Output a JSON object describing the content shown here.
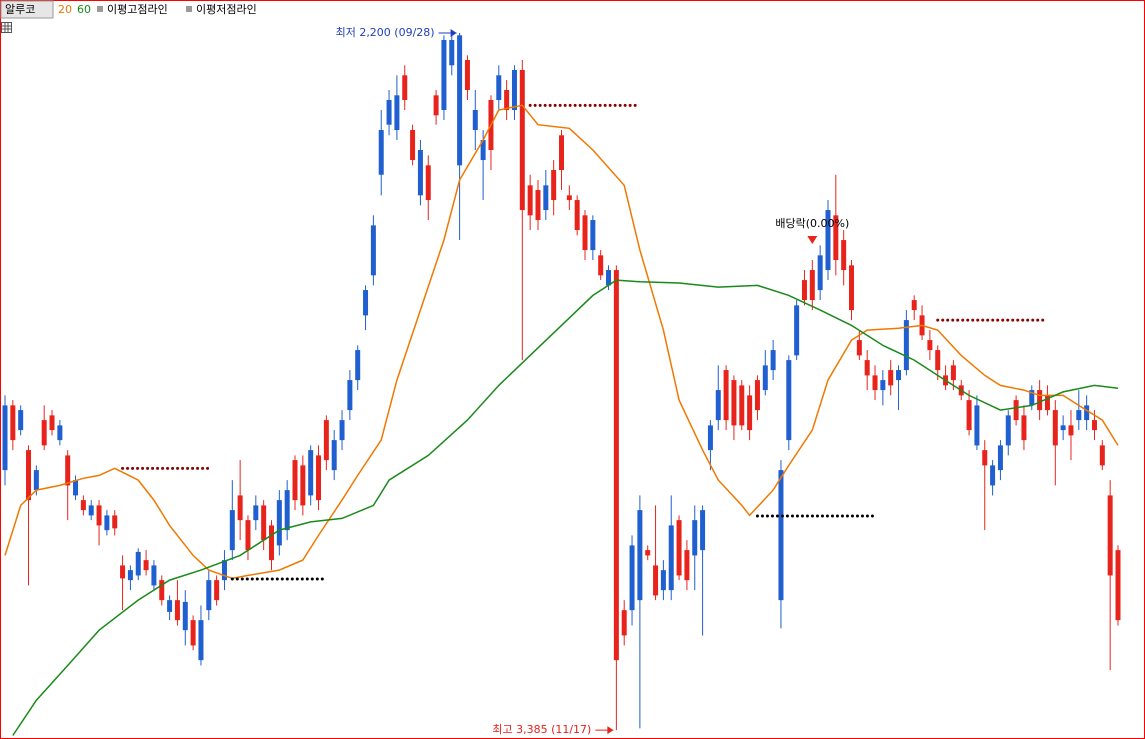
{
  "chart_data": {
    "type": "candlestick",
    "name": "알루코",
    "ylim": [
      2144,
      3400
    ],
    "inverted": true,
    "up_color": "#e8231b",
    "down_color": "#1f5fcf",
    "candles": [
      [
        2943,
        2969,
        2816,
        2833
      ],
      [
        2833,
        2909,
        2824,
        2892
      ],
      [
        2875,
        2884,
        2833,
        2841
      ],
      [
        2909,
        3139,
        2901,
        2994
      ],
      [
        2977,
        2986,
        2935,
        2943
      ],
      [
        2858,
        2909,
        2833,
        2901
      ],
      [
        2850,
        2884,
        2841,
        2875
      ],
      [
        2892,
        2901,
        2858,
        2867
      ],
      [
        2918,
        3028,
        2909,
        2969
      ],
      [
        2986,
        2994,
        2952,
        2960
      ],
      [
        2994,
        3020,
        2986,
        3011
      ],
      [
        3020,
        3028,
        2994,
        3003
      ],
      [
        3003,
        3071,
        2994,
        3037
      ],
      [
        3045,
        3054,
        3011,
        3020
      ],
      [
        3020,
        3054,
        3011,
        3042
      ],
      [
        3105,
        3181,
        3088,
        3127
      ],
      [
        3130,
        3147,
        3105,
        3113
      ],
      [
        3122,
        3130,
        3076,
        3082
      ],
      [
        3096,
        3122,
        3079,
        3113
      ],
      [
        3139,
        3147,
        3096,
        3105
      ],
      [
        3130,
        3173,
        3122,
        3164
      ],
      [
        3184,
        3198,
        3156,
        3164
      ],
      [
        3164,
        3207,
        3130,
        3198
      ],
      [
        3215,
        3241,
        3147,
        3167
      ],
      [
        3198,
        3249,
        3190,
        3241
      ],
      [
        3266,
        3275,
        3173,
        3198
      ],
      [
        3181,
        3198,
        3113,
        3130
      ],
      [
        3130,
        3173,
        3122,
        3164
      ],
      [
        3130,
        3147,
        3079,
        3096
      ],
      [
        3079,
        3096,
        2960,
        3011
      ],
      [
        2986,
        3062,
        2926,
        3028
      ],
      [
        3028,
        3096,
        3020,
        3079
      ],
      [
        3028,
        3045,
        2986,
        3003
      ],
      [
        3003,
        3079,
        2994,
        3062
      ],
      [
        3037,
        3113,
        3028,
        3096
      ],
      [
        3071,
        3088,
        2977,
        2994
      ],
      [
        3045,
        3062,
        2960,
        2977
      ],
      [
        2926,
        3011,
        2918,
        2994
      ],
      [
        2935,
        3020,
        2918,
        3003
      ],
      [
        2986,
        3003,
        2901,
        2909
      ],
      [
        2918,
        3011,
        2901,
        2994
      ],
      [
        2858,
        2943,
        2850,
        2926
      ],
      [
        2943,
        2960,
        2875,
        2892
      ],
      [
        2892,
        2909,
        2841,
        2858
      ],
      [
        2841,
        2858,
        2773,
        2790
      ],
      [
        2790,
        2807,
        2731,
        2739
      ],
      [
        2680,
        2705,
        2629,
        2637
      ],
      [
        2612,
        2629,
        2510,
        2527
      ],
      [
        2441,
        2476,
        2331,
        2365
      ],
      [
        2356,
        2374,
        2297,
        2314
      ],
      [
        2365,
        2382,
        2272,
        2306
      ],
      [
        2272,
        2331,
        2255,
        2314
      ],
      [
        2365,
        2425,
        2356,
        2416
      ],
      [
        2476,
        2493,
        2382,
        2399
      ],
      [
        2425,
        2518,
        2408,
        2484
      ],
      [
        2306,
        2356,
        2297,
        2340
      ],
      [
        2331,
        2348,
        2204,
        2212
      ],
      [
        2255,
        2272,
        2200,
        2212
      ],
      [
        2425,
        2552,
        2200,
        2204
      ],
      [
        2246,
        2314,
        2238,
        2297
      ],
      [
        2365,
        2399,
        2297,
        2331
      ],
      [
        2416,
        2484,
        2365,
        2382
      ],
      [
        2314,
        2433,
        2306,
        2399
      ],
      [
        2314,
        2331,
        2255,
        2272
      ],
      [
        2297,
        2348,
        2280,
        2331
      ],
      [
        2331,
        2348,
        2255,
        2263
      ],
      [
        2263,
        2756,
        2246,
        2501
      ],
      [
        2459,
        2535,
        2441,
        2510
      ],
      [
        2467,
        2535,
        2450,
        2518
      ],
      [
        2501,
        2518,
        2433,
        2459
      ],
      [
        2433,
        2510,
        2416,
        2484
      ],
      [
        2374,
        2467,
        2365,
        2433
      ],
      [
        2476,
        2501,
        2459,
        2484
      ],
      [
        2484,
        2544,
        2476,
        2535
      ],
      [
        2510,
        2586,
        2501,
        2569
      ],
      [
        2569,
        2586,
        2510,
        2518
      ],
      [
        2578,
        2620,
        2569,
        2612
      ],
      [
        2629,
        2637,
        2595,
        2603
      ],
      [
        2603,
        3385,
        2595,
        3266
      ],
      [
        3181,
        3241,
        3164,
        3224
      ],
      [
        3181,
        3207,
        3054,
        3071
      ],
      [
        3164,
        3382,
        2986,
        3011
      ],
      [
        3079,
        3096,
        3071,
        3088
      ],
      [
        3105,
        3164,
        3003,
        3156
      ],
      [
        3147,
        3164,
        3096,
        3113
      ],
      [
        3147,
        3164,
        2986,
        3037
      ],
      [
        3028,
        3130,
        3020,
        3122
      ],
      [
        3079,
        3147,
        3062,
        3130
      ],
      [
        3088,
        3147,
        3003,
        3028
      ],
      [
        3079,
        3224,
        3003,
        3011
      ],
      [
        2909,
        2943,
        2858,
        2867
      ],
      [
        2858,
        2875,
        2765,
        2807
      ],
      [
        2773,
        2875,
        2765,
        2858
      ],
      [
        2790,
        2892,
        2782,
        2867
      ],
      [
        2799,
        2875,
        2790,
        2867
      ],
      [
        2816,
        2892,
        2799,
        2875
      ],
      [
        2790,
        2858,
        2782,
        2841
      ],
      [
        2807,
        2816,
        2739,
        2765
      ],
      [
        2773,
        2790,
        2722,
        2739
      ],
      [
        3164,
        3212,
        2926,
        2943
      ],
      [
        2892,
        2909,
        2748,
        2756
      ],
      [
        2748,
        2756,
        2654,
        2663
      ],
      [
        2620,
        2663,
        2603,
        2654
      ],
      [
        2603,
        2671,
        2586,
        2654
      ],
      [
        2637,
        2654,
        2561,
        2578
      ],
      [
        2603,
        2620,
        2484,
        2501
      ],
      [
        2510,
        2612,
        2441,
        2586
      ],
      [
        2552,
        2629,
        2535,
        2603
      ],
      [
        2595,
        2688,
        2586,
        2671
      ],
      [
        2722,
        2756,
        2705,
        2748
      ],
      [
        2756,
        2807,
        2739,
        2782
      ],
      [
        2782,
        2824,
        2765,
        2807
      ],
      [
        2807,
        2833,
        2773,
        2790
      ],
      [
        2773,
        2816,
        2756,
        2799
      ],
      [
        2790,
        2841,
        2765,
        2773
      ],
      [
        2773,
        2782,
        2671,
        2688
      ],
      [
        2654,
        2688,
        2646,
        2671
      ],
      [
        2680,
        2722,
        2663,
        2714
      ],
      [
        2722,
        2756,
        2705,
        2739
      ],
      [
        2739,
        2790,
        2731,
        2773
      ],
      [
        2782,
        2807,
        2765,
        2799
      ],
      [
        2765,
        2807,
        2756,
        2790
      ],
      [
        2799,
        2824,
        2790,
        2816
      ],
      [
        2824,
        2884,
        2807,
        2875
      ],
      [
        2901,
        2909,
        2816,
        2833
      ],
      [
        2909,
        3045,
        2892,
        2935
      ],
      [
        2969,
        2986,
        2926,
        2935
      ],
      [
        2943,
        2960,
        2892,
        2901
      ],
      [
        2901,
        2918,
        2841,
        2850
      ],
      [
        2824,
        2867,
        2816,
        2858
      ],
      [
        2850,
        2909,
        2833,
        2892
      ],
      [
        2833,
        2841,
        2799,
        2807
      ],
      [
        2807,
        2858,
        2790,
        2841
      ],
      [
        2816,
        2850,
        2799,
        2841
      ],
      [
        2841,
        2969,
        2824,
        2901
      ],
      [
        2875,
        2892,
        2850,
        2867
      ],
      [
        2867,
        2926,
        2841,
        2884
      ],
      [
        2858,
        2875,
        2807,
        2841
      ],
      [
        2858,
        2875,
        2816,
        2833
      ],
      [
        2858,
        2892,
        2841,
        2875
      ],
      [
        2901,
        2943,
        2892,
        2935
      ],
      [
        2986,
        3283,
        2960,
        3122
      ],
      [
        3079,
        3207,
        3071,
        3198
      ]
    ],
    "moving_averages": [
      {
        "name": "20",
        "color": "#f07800",
        "x": [
          0,
          2,
          4,
          7,
          10,
          12,
          14,
          17,
          19,
          21,
          24,
          26,
          29,
          31,
          35,
          38,
          40,
          43,
          45,
          48,
          50,
          53,
          56,
          58,
          61,
          63,
          66,
          68,
          72,
          75,
          79,
          81,
          84,
          86,
          89,
          91,
          94,
          95,
          98,
          100,
          103,
          105,
          108,
          110,
          114,
          117,
          119,
          122,
          125,
          127,
          130,
          132,
          135,
          137,
          140,
          142
        ],
        "values": [
          3088,
          3003,
          2977,
          2969,
          2957,
          2952,
          2940,
          2960,
          2994,
          3037,
          3088,
          3113,
          3127,
          3122,
          3113,
          3096,
          3054,
          2994,
          2952,
          2892,
          2790,
          2671,
          2552,
          2450,
          2382,
          2331,
          2323,
          2356,
          2362,
          2399,
          2459,
          2569,
          2705,
          2824,
          2909,
          2960,
          3003,
          3020,
          2977,
          2935,
          2875,
          2790,
          2722,
          2705,
          2702,
          2697,
          2705,
          2748,
          2782,
          2799,
          2807,
          2816,
          2816,
          2833,
          2858,
          2901
        ]
      },
      {
        "name": "60",
        "color": "#1a8a1a",
        "x": [
          1,
          4,
          8,
          12,
          17,
          21,
          25,
          30,
          35,
          39,
          43,
          47,
          49,
          54,
          59,
          63,
          67,
          71,
          75,
          78,
          81,
          86,
          91,
          96,
          100,
          104,
          108,
          112,
          116,
          119,
          123,
          127,
          131,
          135,
          139,
          142
        ],
        "values": [
          3394,
          3334,
          3275,
          3215,
          3164,
          3130,
          3113,
          3088,
          3045,
          3031,
          3025,
          3003,
          2960,
          2918,
          2858,
          2799,
          2748,
          2697,
          2646,
          2620,
          2623,
          2625,
          2632,
          2629,
          2646,
          2671,
          2697,
          2731,
          2756,
          2782,
          2816,
          2841,
          2833,
          2810,
          2799,
          2804
        ]
      }
    ],
    "high_lines": {
      "name": "이평고점라인",
      "color": "#8b0000",
      "lines": [
        {
          "value": 2940,
          "from": 15,
          "to": 26
        },
        {
          "value": 2323,
          "from": 67,
          "to": 81
        },
        {
          "value": 2688,
          "from": 119,
          "to": 133
        }
      ]
    },
    "low_lines": {
      "name": "이평저점라인",
      "color": "#000000",
      "lines": [
        {
          "value": 3128,
          "from": 29,
          "to": 41
        },
        {
          "value": 3021,
          "from": 96,
          "to": 111
        }
      ]
    },
    "annotations": [
      {
        "label": "최저 2,200 (09/28)",
        "value": 2200,
        "index": 58,
        "color": "#1f3fbf",
        "kind": "low"
      },
      {
        "label": "최고 3,385 (11/17)",
        "value": 3385,
        "index": 78,
        "color": "#e8231b",
        "kind": "high"
      },
      {
        "label": "배당락(0.00%)",
        "value": 2586,
        "index": 103,
        "color": "#e8231b",
        "kind": "event"
      }
    ]
  }
}
